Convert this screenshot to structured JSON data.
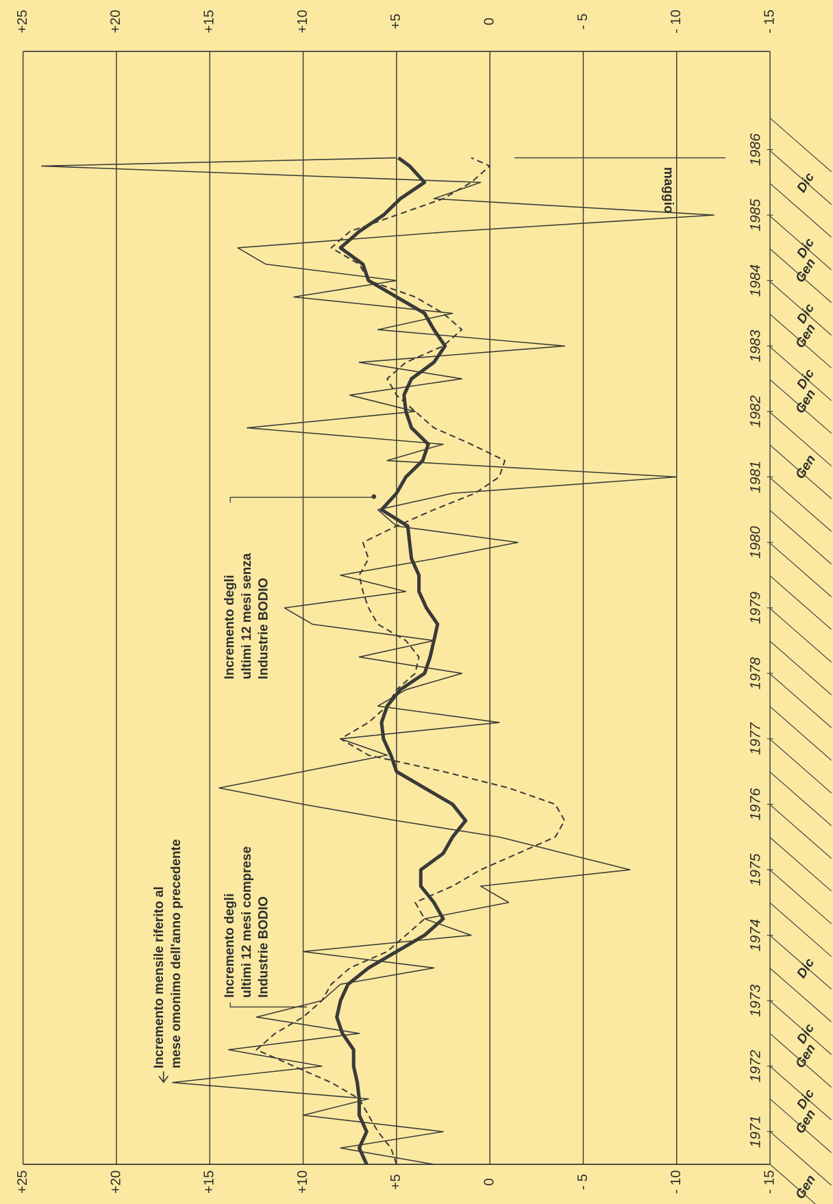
{
  "chart_data": {
    "type": "line",
    "orientation": "rotated",
    "background": "#fbe9a2",
    "xlim": [
      1971,
      1988
    ],
    "xticks": [
      {
        "value": 1971.5,
        "label": "1971"
      },
      {
        "value": 1972.5,
        "label": "1972"
      },
      {
        "value": 1973.5,
        "label": "1973"
      },
      {
        "value": 1974.5,
        "label": "1974"
      },
      {
        "value": 1975.5,
        "label": "1975"
      },
      {
        "value": 1976.5,
        "label": "1976"
      },
      {
        "value": 1977.5,
        "label": "1977"
      },
      {
        "value": 1978.5,
        "label": "1978"
      },
      {
        "value": 1979.5,
        "label": "1979"
      },
      {
        "value": 1980.5,
        "label": "1980"
      },
      {
        "value": 1981.5,
        "label": "1981"
      },
      {
        "value": 1982.5,
        "label": "1982"
      },
      {
        "value": 1983.5,
        "label": "1983"
      },
      {
        "value": 1984.5,
        "label": "1984"
      },
      {
        "value": 1985.5,
        "label": "1985"
      },
      {
        "value": 1986.5,
        "label": "1986"
      }
    ],
    "ylim": [
      -15,
      25
    ],
    "yticks": [
      {
        "value": 25,
        "label": "+25"
      },
      {
        "value": 20,
        "label": "+20"
      },
      {
        "value": 15,
        "label": "+15"
      },
      {
        "value": 10,
        "label": "+10"
      },
      {
        "value": 5,
        "label": "+5"
      },
      0,
      {
        "value": -5,
        "label": "- 5"
      },
      {
        "value": -10,
        "label": "- 10"
      },
      {
        "value": -15,
        "label": "- 15"
      }
    ],
    "grid": true,
    "month_labels": [
      {
        "text": "Gen",
        "x": 1971.0
      },
      {
        "text": "Dic",
        "x": 1971.92
      },
      {
        "text": "Gen",
        "x": 1972.0
      },
      {
        "text": "Dic",
        "x": 1972.92
      },
      {
        "text": "Gen",
        "x": 1973.0
      },
      {
        "text": "Dic",
        "x": 1973.92
      },
      {
        "text": "Gen",
        "x": 1982.0
      },
      {
        "text": "Dic",
        "x": 1982.92
      },
      {
        "text": "Gen",
        "x": 1983.0
      },
      {
        "text": "Dic",
        "x": 1983.92
      },
      {
        "text": "Gen",
        "x": 1984.0
      },
      {
        "text": "Dic",
        "x": 1984.92
      },
      {
        "text": "Gen",
        "x": 1985.0
      },
      {
        "text": "Dic",
        "x": 1985.92
      }
    ],
    "annotations": [
      {
        "text": "maggio",
        "x": 1986.375
      }
    ],
    "x": [
      1971,
      1971.25,
      1971.5,
      1971.75,
      1972,
      1972.25,
      1972.5,
      1972.75,
      1973,
      1973.25,
      1973.5,
      1973.75,
      1974,
      1974.25,
      1974.5,
      1974.75,
      1975,
      1975.25,
      1975.5,
      1975.75,
      1976,
      1976.25,
      1976.5,
      1976.75,
      1977,
      1977.25,
      1977.5,
      1977.75,
      1978,
      1978.25,
      1978.5,
      1978.75,
      1979,
      1979.25,
      1979.5,
      1979.75,
      1980,
      1980.25,
      1980.5,
      1980.75,
      1981,
      1981.25,
      1981.5,
      1981.75,
      1982,
      1982.25,
      1982.5,
      1982.75,
      1983,
      1983.25,
      1983.5,
      1983.75,
      1984,
      1984.25,
      1984.5,
      1984.75,
      1985,
      1985.25,
      1985.5,
      1985.75,
      1986,
      1986.25,
      1986.375
    ],
    "series": [
      {
        "name": [
          "Incremento mensile riferito al",
          "mese omonimo dell'anno precedente"
        ],
        "style": "thin",
        "color": "#3a3a38",
        "values": [
          3.0,
          8.0,
          2.5,
          10.0,
          6.5,
          17.0,
          9.0,
          14.0,
          7.0,
          12.5,
          9.0,
          8.0,
          3.0,
          10.0,
          1.0,
          3.5,
          -1.0,
          0.5,
          -7.5,
          -4.0,
          -0.5,
          5.0,
          10.0,
          14.5,
          10.0,
          5.5,
          8.0,
          -0.5,
          6.0,
          4.5,
          1.5,
          7.0,
          3.0,
          9.5,
          11.0,
          4.5,
          8.0,
          3.0,
          -1.5,
          5.0,
          6.0,
          2.0,
          -10.0,
          5.5,
          2.5,
          13.0,
          4.0,
          7.5,
          1.5,
          7.0,
          -4.0,
          6.0,
          2.0,
          10.5,
          5.0,
          12.0,
          13.5,
          2.0,
          -12.0,
          3.0,
          0.5,
          24.0,
          5.0
        ]
      },
      {
        "name": [
          "Incremento degli",
          "ultimi 12 mesi comprese",
          "Industrie BODIO"
        ],
        "style": "dashed",
        "color": "#3a3a38",
        "values": [
          5.0,
          5.3,
          6.0,
          6.5,
          7.0,
          8.5,
          10.5,
          12.5,
          11.5,
          10.0,
          9.0,
          8.5,
          7.5,
          5.5,
          4.5,
          3.5,
          4.0,
          2.0,
          0.5,
          -1.5,
          -3.5,
          -4.0,
          -3.5,
          -1.0,
          2.5,
          6.5,
          8.0,
          6.5,
          5.5,
          5.0,
          4.0,
          3.8,
          4.5,
          6.0,
          6.5,
          6.8,
          7.0,
          6.5,
          6.8,
          5.0,
          3.0,
          0.8,
          -0.5,
          -0.8,
          1.0,
          3.0,
          4.0,
          5.0,
          5.5,
          4.5,
          2.5,
          1.5,
          2.5,
          4.0,
          6.5,
          7.0,
          8.5,
          7.5,
          5.0,
          2.5,
          1.0,
          0.0,
          1.0
        ]
      },
      {
        "name": [
          "Incremento degli",
          "ultimi 12 mesi senza",
          "Industrie BODIO"
        ],
        "style": "thick",
        "color": "#3a3a38",
        "values": [
          6.6,
          7.0,
          6.6,
          7.0,
          7.0,
          7.1,
          7.3,
          7.3,
          7.9,
          8.2,
          8.0,
          7.6,
          6.5,
          5.0,
          3.5,
          2.5,
          3.0,
          3.7,
          3.7,
          2.5,
          2.0,
          1.3,
          2.0,
          3.5,
          5.0,
          5.3,
          5.7,
          5.8,
          5.5,
          4.8,
          3.5,
          3.2,
          3.0,
          2.8,
          3.4,
          3.8,
          3.8,
          4.2,
          4.3,
          4.4,
          5.8,
          5.0,
          4.5,
          3.6,
          3.3,
          4.2,
          4.5,
          4.6,
          4.2,
          3.0,
          2.4,
          3.0,
          3.5,
          5.0,
          6.5,
          6.8,
          8.0,
          7.0,
          5.7,
          4.8,
          3.5,
          4.3,
          4.9
        ]
      }
    ]
  }
}
